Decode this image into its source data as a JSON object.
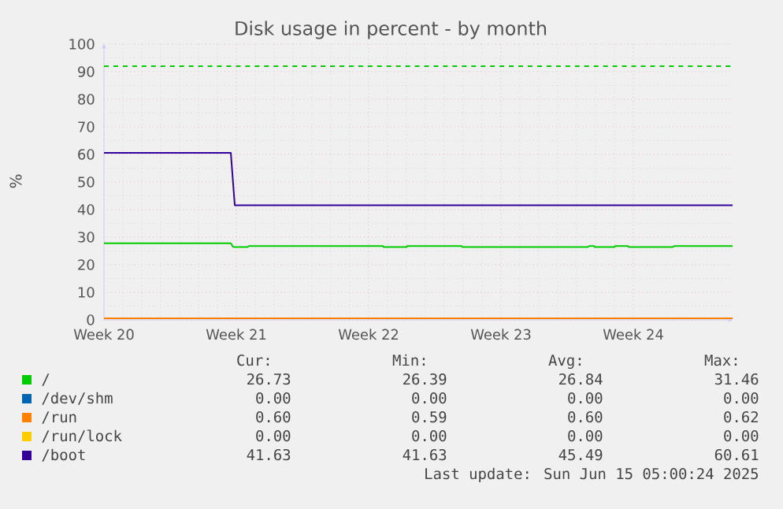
{
  "chart_data": {
    "type": "line",
    "title": "Disk usage in percent - by month",
    "ylabel": "%",
    "xlim": [
      "2025-05-12",
      "2025-06-14T06:00"
    ],
    "ylim": [
      0,
      100
    ],
    "xticks": [
      {
        "value": "2025-05-12",
        "label": "Week 20"
      },
      {
        "value": "2025-05-19",
        "label": "Week 21"
      },
      {
        "value": "2025-05-26",
        "label": "Week 22"
      },
      {
        "value": "2025-06-02",
        "label": "Week 23"
      },
      {
        "value": "2025-06-09",
        "label": "Week 24"
      }
    ],
    "yticks": [
      0,
      10,
      20,
      30,
      40,
      50,
      60,
      70,
      80,
      90,
      100
    ],
    "grid": true,
    "legend": "bottom",
    "marker": "none",
    "line_style": "solid",
    "series": [
      {
        "name": "/",
        "color": "#00cc00",
        "x": [
          "2025-05-12",
          "2025-05-18T17:00",
          "2025-05-18T20:00",
          "2025-05-19T14:00",
          "2025-05-19T16:00",
          "2025-05-26T18:00",
          "2025-05-26T19:00",
          "2025-05-28",
          "2025-05-28T01:00",
          "2025-05-30T22:00",
          "2025-05-30T23:00",
          "2025-06-06T14:00",
          "2025-06-06T16:00",
          "2025-06-06T22:00",
          "2025-06-06T23:00",
          "2025-06-08",
          "2025-06-08T01:00",
          "2025-06-08T17:00",
          "2025-06-08T18:00",
          "2025-06-11T02:00",
          "2025-06-11T04:00",
          "2025-06-14T06:00"
        ],
        "values": [
          27.8,
          27.8,
          26.4,
          26.4,
          26.8,
          26.8,
          26.4,
          26.4,
          26.8,
          26.8,
          26.4,
          26.4,
          26.8,
          26.8,
          26.4,
          26.4,
          26.8,
          26.8,
          26.4,
          26.4,
          26.8,
          26.8
        ]
      },
      {
        "name": "/dev/shm",
        "color": "#0066b3"
      },
      {
        "name": "/run",
        "color": "#ff8000",
        "x": [
          "2025-05-12",
          "2025-06-14T06:00"
        ],
        "values": [
          0.6,
          0.6
        ]
      },
      {
        "name": "/run/lock",
        "color": "#ffcc00"
      },
      {
        "name": "/boot",
        "color": "#330099",
        "x": [
          "2025-05-12",
          "2025-05-18T17:00",
          "2025-05-18T22:00",
          "2025-06-14T06:00"
        ],
        "values": [
          60.6,
          60.6,
          41.6,
          41.6
        ]
      }
    ],
    "ref_lines": [
      {
        "axis": "y",
        "value": 92,
        "color": "#00cc00",
        "line_style": "dashed"
      }
    ],
    "annotations": [
      "Cur:",
      "Min:",
      "Avg:",
      "Max:",
      "26.73",
      "26.39",
      "26.84",
      "31.46",
      "0.00",
      "0.00",
      "0.00",
      "0.00",
      "0.60",
      "0.59",
      "0.60",
      "0.62",
      "0.00",
      "0.00",
      "0.00",
      "0.00",
      "41.63",
      "41.63",
      "45.49",
      "60.61",
      "Last update: Sun Jun 15 05:00:24 2025"
    ]
  }
}
